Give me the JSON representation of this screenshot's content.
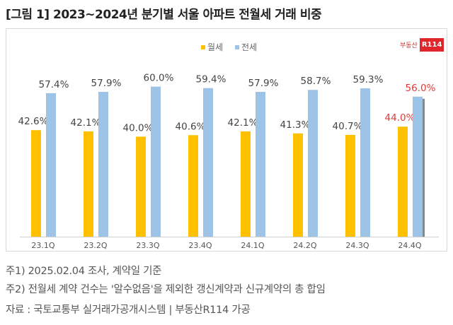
{
  "title": "[그림 1] 2023~2024년 분기별 서울 아파트 전월세 거래 비중",
  "logo": {
    "text": "부동산",
    "badge": "R114"
  },
  "chart_data": {
    "type": "bar",
    "categories": [
      "23.1Q",
      "23.2Q",
      "23.3Q",
      "23.4Q",
      "24.1Q",
      "24.2Q",
      "24.3Q",
      "24.4Q"
    ],
    "series": [
      {
        "name": "월세",
        "color": "#FFC000",
        "values": [
          42.6,
          42.1,
          40.0,
          40.6,
          42.1,
          41.3,
          40.7,
          44.0
        ],
        "labels": [
          "42.6%",
          "42.1%",
          "40.0%",
          "40.6%",
          "42.1%",
          "41.3%",
          "40.7%",
          "44.0%"
        ]
      },
      {
        "name": "전세",
        "color": "#9DC3E6",
        "values": [
          57.4,
          57.9,
          60.0,
          59.4,
          57.9,
          58.7,
          59.3,
          56.0
        ],
        "labels": [
          "57.4%",
          "57.9%",
          "60.0%",
          "59.4%",
          "57.9%",
          "58.7%",
          "59.3%",
          "56.0%"
        ]
      }
    ],
    "highlight_label_color": "#E53935",
    "highlight_category": "24.4Q",
    "ylim": [
      0,
      100
    ],
    "legend": "top-center",
    "grid": false
  },
  "notes": [
    "주1) 2025.02.04 조사, 계약일 기준",
    "주2) 전월세 계약 건수는 '알수없음'을 제외한 갱신계약과 신규계약의 총 합임",
    "자료 : 국토교통부 실거래가공개시스템 | 부동산R114 가공"
  ]
}
